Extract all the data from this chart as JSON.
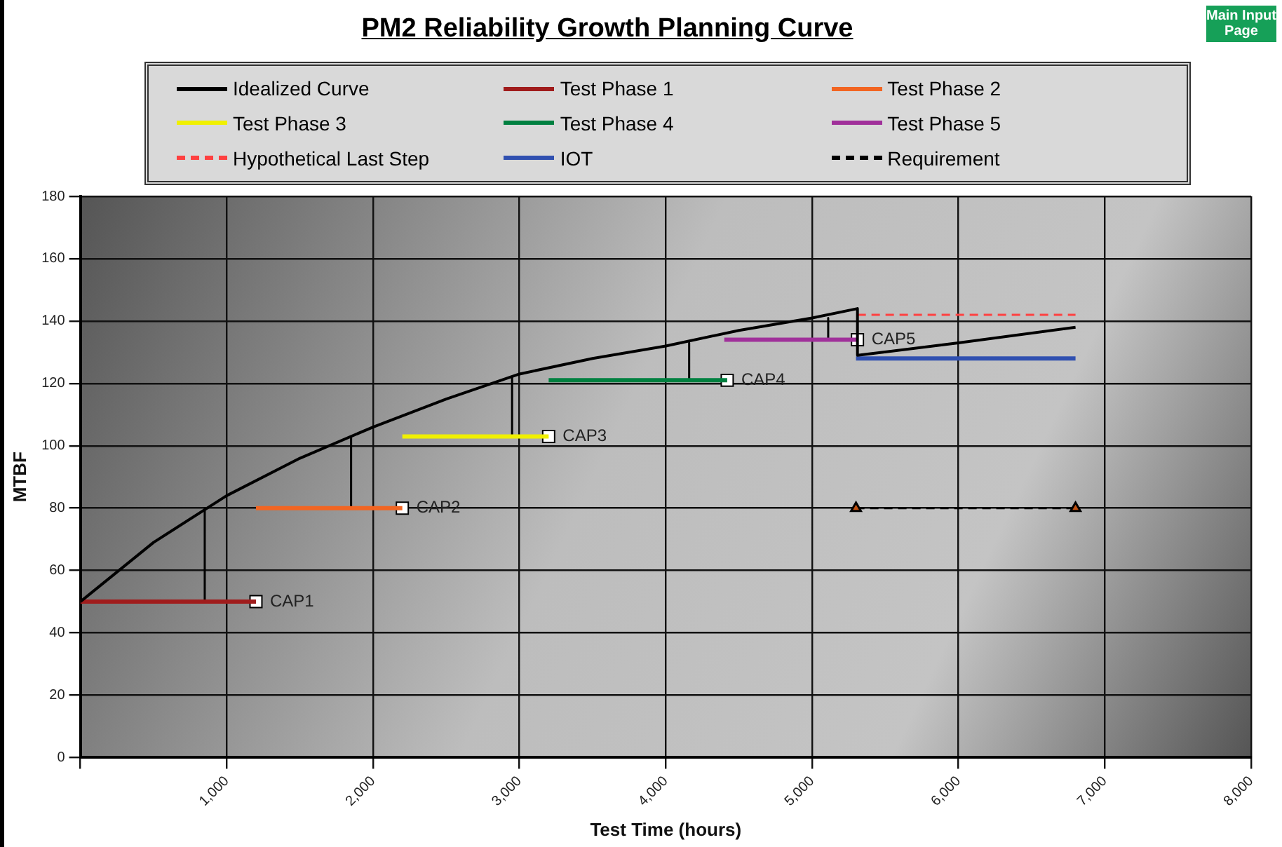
{
  "chart_data": {
    "type": "line",
    "title": "PM2 Reliability Growth Planning Curve",
    "xlabel": "Test Time (hours)",
    "ylabel": "MTBF",
    "series": [
      {
        "name": "Idealized Curve",
        "color": "#000000",
        "x": [
          0,
          500,
          1000,
          1500,
          2000,
          2500,
          3000,
          3500,
          4000,
          4500,
          5000,
          5310,
          5310,
          6000,
          6800
        ],
        "values": [
          50,
          69,
          84,
          96,
          106,
          115,
          123,
          128,
          132,
          137,
          141,
          144,
          129,
          133,
          138
        ]
      },
      {
        "name": "Test Phase 1",
        "color": "#a01c1c",
        "x": [
          0,
          1200
        ],
        "values": [
          50,
          50
        ]
      },
      {
        "name": "Test Phase 2",
        "color": "#f26522",
        "x": [
          1200,
          2200
        ],
        "values": [
          80,
          80
        ]
      },
      {
        "name": "Test Phase 3",
        "color": "#f0f000",
        "x": [
          2200,
          3200
        ],
        "values": [
          103,
          103
        ]
      },
      {
        "name": "Test Phase 4",
        "color": "#008040",
        "x": [
          3200,
          4420
        ],
        "values": [
          121,
          121
        ]
      },
      {
        "name": "Test Phase 5",
        "color": "#a0309a",
        "x": [
          4400,
          5310
        ],
        "values": [
          134,
          134
        ]
      },
      {
        "name": "Hypothetical Last Step",
        "color": "#ff4040",
        "line_style": "dashed",
        "x": [
          5310,
          6800
        ],
        "values": [
          142,
          142
        ]
      },
      {
        "name": "IOT",
        "color": "#3050b0",
        "x": [
          5300,
          6800
        ],
        "values": [
          128,
          128
        ]
      },
      {
        "name": "Requirement",
        "color": "#000000",
        "line_style": "dashed",
        "marker": "triangle",
        "x": [
          5300,
          6800
        ],
        "values": [
          80,
          80
        ]
      },
      {
        "color": "#000000",
        "x": [
          850,
          850
        ],
        "values": [
          80,
          50
        ]
      },
      {
        "color": "#000000",
        "x": [
          1850,
          1850
        ],
        "values": [
          103,
          80
        ]
      },
      {
        "color": "#000000",
        "x": [
          2950,
          2950
        ],
        "values": [
          122,
          103
        ]
      },
      {
        "color": "#000000",
        "x": [
          4160,
          4160
        ],
        "values": [
          133,
          121
        ]
      },
      {
        "color": "#000000",
        "x": [
          5110,
          5110
        ],
        "values": [
          141,
          134
        ]
      },
      {
        "type": "scatter",
        "color": "#ffffff",
        "marker": "square",
        "x": [
          1200,
          2200,
          3200,
          4420,
          5310
        ],
        "values": [
          50,
          80,
          103,
          121,
          134
        ]
      }
    ],
    "xlim": [
      0,
      8000
    ],
    "xticks": [
      {
        "value": 0,
        "label": null
      },
      {
        "value": 1000,
        "label": "1,000"
      },
      {
        "value": 2000,
        "label": "2,000"
      },
      {
        "value": 3000,
        "label": "3,000"
      },
      {
        "value": 4000,
        "label": "4,000"
      },
      {
        "value": 5000,
        "label": "5,000"
      },
      {
        "value": 6000,
        "label": "6,000"
      },
      {
        "value": 7000,
        "label": "7,000"
      },
      {
        "value": 8000,
        "label": "8,000"
      }
    ],
    "ylim": [
      0,
      180
    ],
    "yticks": [
      0,
      20,
      40,
      60,
      80,
      100,
      120,
      140,
      160,
      180
    ],
    "grid": true,
    "legend": "top",
    "annotations": [
      {
        "text": "CAP1",
        "x": 1200,
        "y": 50
      },
      {
        "text": "CAP2",
        "x": 2200,
        "y": 80
      },
      {
        "text": "CAP3",
        "x": 3200,
        "y": 103
      },
      {
        "text": "CAP4",
        "x": 4420,
        "y": 121
      },
      {
        "text": "CAP5",
        "x": 5310,
        "y": 134
      },
      "Main Input Page"
    ]
  }
}
